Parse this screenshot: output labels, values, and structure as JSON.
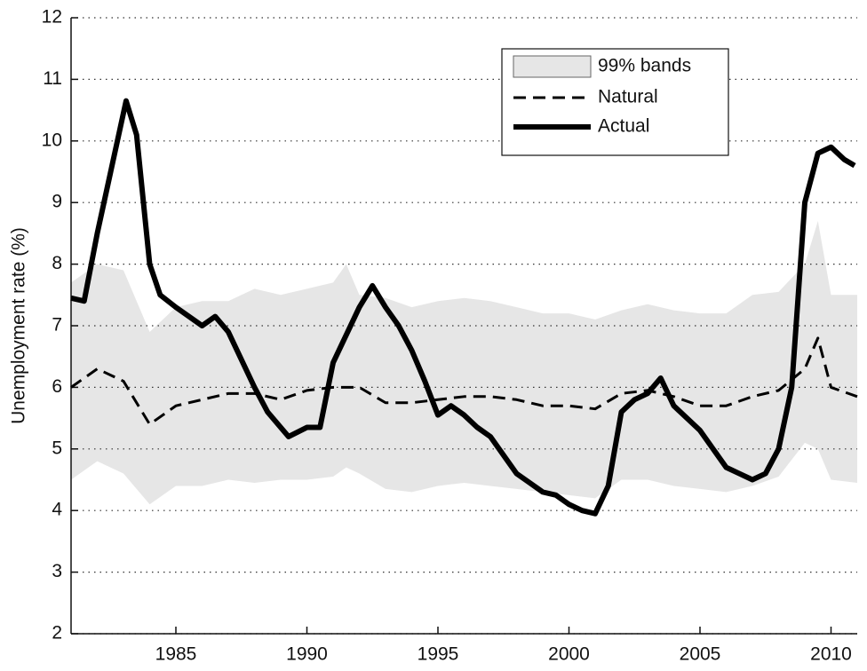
{
  "chart_data": {
    "type": "line",
    "y_label": "Unemployment rate (%)",
    "xlim": [
      1981,
      2011
    ],
    "ylim": [
      2,
      12
    ],
    "xticks": [
      1985,
      1990,
      1995,
      2000,
      2005,
      2010
    ],
    "yticks": [
      2,
      3,
      4,
      5,
      6,
      7,
      8,
      9,
      10,
      11,
      12
    ],
    "grid": true,
    "series": [
      {
        "name": "99% bands",
        "kind": "band",
        "color": "#e6e6e6",
        "x": [
          1981,
          1982,
          1983,
          1984,
          1985,
          1986,
          1987,
          1988,
          1989,
          1990,
          1991,
          1991.5,
          1992,
          1993,
          1994,
          1995,
          1996,
          1997,
          1998,
          1999,
          2000,
          2001,
          2002,
          2003,
          2004,
          2005,
          2006,
          2007,
          2008,
          2009,
          2009.5,
          2010,
          2011
        ],
        "high": [
          7.7,
          8.0,
          7.9,
          6.9,
          7.3,
          7.4,
          7.4,
          7.6,
          7.5,
          7.6,
          7.7,
          8.0,
          7.5,
          7.45,
          7.3,
          7.4,
          7.45,
          7.4,
          7.3,
          7.2,
          7.2,
          7.1,
          7.25,
          7.35,
          7.25,
          7.2,
          7.2,
          7.5,
          7.55,
          8.0,
          8.7,
          7.5,
          7.5
        ],
        "low": [
          4.5,
          4.8,
          4.6,
          4.1,
          4.4,
          4.4,
          4.5,
          4.45,
          4.5,
          4.5,
          4.55,
          4.7,
          4.6,
          4.35,
          4.3,
          4.4,
          4.45,
          4.4,
          4.35,
          4.3,
          4.25,
          4.2,
          4.5,
          4.5,
          4.4,
          4.35,
          4.3,
          4.4,
          4.55,
          5.1,
          5.0,
          4.5,
          4.45
        ]
      },
      {
        "name": "Natural",
        "kind": "dashed",
        "color": "#000000",
        "x": [
          1981,
          1982,
          1983,
          1984,
          1985,
          1986,
          1987,
          1988,
          1989,
          1990,
          1991,
          1992,
          1993,
          1994,
          1995,
          1996,
          1997,
          1998,
          1999,
          2000,
          2001,
          2002,
          2003,
          2004,
          2005,
          2006,
          2007,
          2008,
          2009,
          2009.5,
          2010,
          2011
        ],
        "values": [
          6.0,
          6.3,
          6.1,
          5.4,
          5.7,
          5.8,
          5.9,
          5.9,
          5.8,
          5.95,
          6.0,
          6.0,
          5.75,
          5.75,
          5.8,
          5.85,
          5.85,
          5.8,
          5.7,
          5.7,
          5.65,
          5.9,
          5.95,
          5.85,
          5.7,
          5.7,
          5.85,
          5.95,
          6.3,
          6.8,
          6.0,
          5.85
        ]
      },
      {
        "name": "Actual",
        "kind": "solid",
        "color": "#000000",
        "x": [
          1981,
          1981.5,
          1982,
          1983.1,
          1983.5,
          1984,
          1984.4,
          1985,
          1986,
          1986.5,
          1987,
          1988,
          1988.5,
          1989,
          1989.3,
          1990,
          1990.5,
          1991,
          1991.5,
          1992,
          1992.5,
          1993,
          1993.5,
          1994,
          1994.5,
          1995,
          1995.5,
          1996,
          1996.5,
          1997,
          1997.5,
          1998,
          1998.5,
          1999,
          1999.5,
          2000,
          2000.5,
          2001,
          2001.5,
          2002,
          2002.5,
          2003,
          2003.5,
          2004,
          2004.5,
          2005,
          2005.5,
          2006,
          2006.5,
          2007,
          2007.5,
          2008,
          2008.5,
          2009,
          2009.5,
          2010,
          2010.5,
          2010.9
        ],
        "values": [
          7.45,
          7.4,
          8.5,
          10.65,
          10.1,
          8.0,
          7.5,
          7.3,
          7.0,
          7.15,
          6.9,
          6.0,
          5.6,
          5.35,
          5.2,
          5.35,
          5.35,
          6.4,
          6.85,
          7.3,
          7.65,
          7.3,
          7.0,
          6.6,
          6.1,
          5.55,
          5.7,
          5.55,
          5.35,
          5.2,
          4.9,
          4.6,
          4.45,
          4.3,
          4.25,
          4.1,
          4.0,
          3.95,
          4.4,
          5.6,
          5.8,
          5.9,
          6.15,
          5.7,
          5.5,
          5.3,
          5.0,
          4.7,
          4.6,
          4.5,
          4.6,
          5.0,
          6.0,
          9.0,
          9.8,
          9.9,
          9.7,
          9.6
        ]
      }
    ]
  }
}
